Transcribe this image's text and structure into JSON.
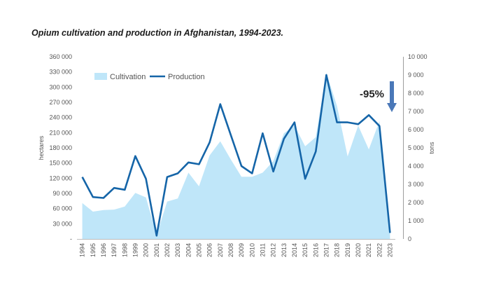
{
  "chart_data": {
    "type": "area+line",
    "title": "Opium cultivation and production in Afghanistan, 1994-2023.",
    "ylabel_left": "hectares",
    "ylabel_right": "tons",
    "ylim_left": [
      0,
      360000
    ],
    "ylim_right": [
      0,
      10000
    ],
    "left_ticks": [
      "-",
      "30 000",
      "60 000",
      "90 000",
      "120 000",
      "150 000",
      "180 000",
      "210 000",
      "240 000",
      "270 000",
      "300 000",
      "330 000",
      "360 000"
    ],
    "right_ticks": [
      "0",
      "1 000",
      "2 000",
      "3 000",
      "4 000",
      "5 000",
      "6 000",
      "7 000",
      "8 000",
      "9 000",
      "10 000"
    ],
    "categories": [
      "1994",
      "1995",
      "1996",
      "1997",
      "1998",
      "1999",
      "2000",
      "2001",
      "2002",
      "2003",
      "2004",
      "2005",
      "2006",
      "2007",
      "2008",
      "2009",
      "2010",
      "2011",
      "2012",
      "2013",
      "2014",
      "2015",
      "2016",
      "2017",
      "2018",
      "2019",
      "2020",
      "2021",
      "2022",
      "2023"
    ],
    "series": [
      {
        "name": "Cultivation",
        "axis": "left",
        "style": "area",
        "color": "#bfe6f9",
        "values": [
          71000,
          54000,
          57000,
          58000,
          64000,
          91000,
          82000,
          8000,
          74000,
          80000,
          131000,
          104000,
          165000,
          193000,
          157000,
          123000,
          123000,
          131000,
          154000,
          209000,
          224000,
          183000,
          201000,
          328000,
          263000,
          163000,
          224000,
          177000,
          233000,
          10800
        ]
      },
      {
        "name": "Production",
        "axis": "right",
        "style": "line",
        "color": "#1565a8",
        "values": [
          3400,
          2300,
          2250,
          2800,
          2700,
          4550,
          3300,
          180,
          3400,
          3600,
          4200,
          4100,
          5300,
          7400,
          5700,
          4000,
          3600,
          5800,
          3700,
          5500,
          6400,
          3300,
          4800,
          9000,
          6400,
          6400,
          6300,
          6800,
          6200,
          330
        ]
      }
    ],
    "legend": {
      "position": "top-left",
      "items": [
        "Cultivation",
        "Production"
      ]
    },
    "annotations": [
      {
        "text": "-95%",
        "year": "2023"
      }
    ],
    "arrow_color": "#4a78b8"
  }
}
